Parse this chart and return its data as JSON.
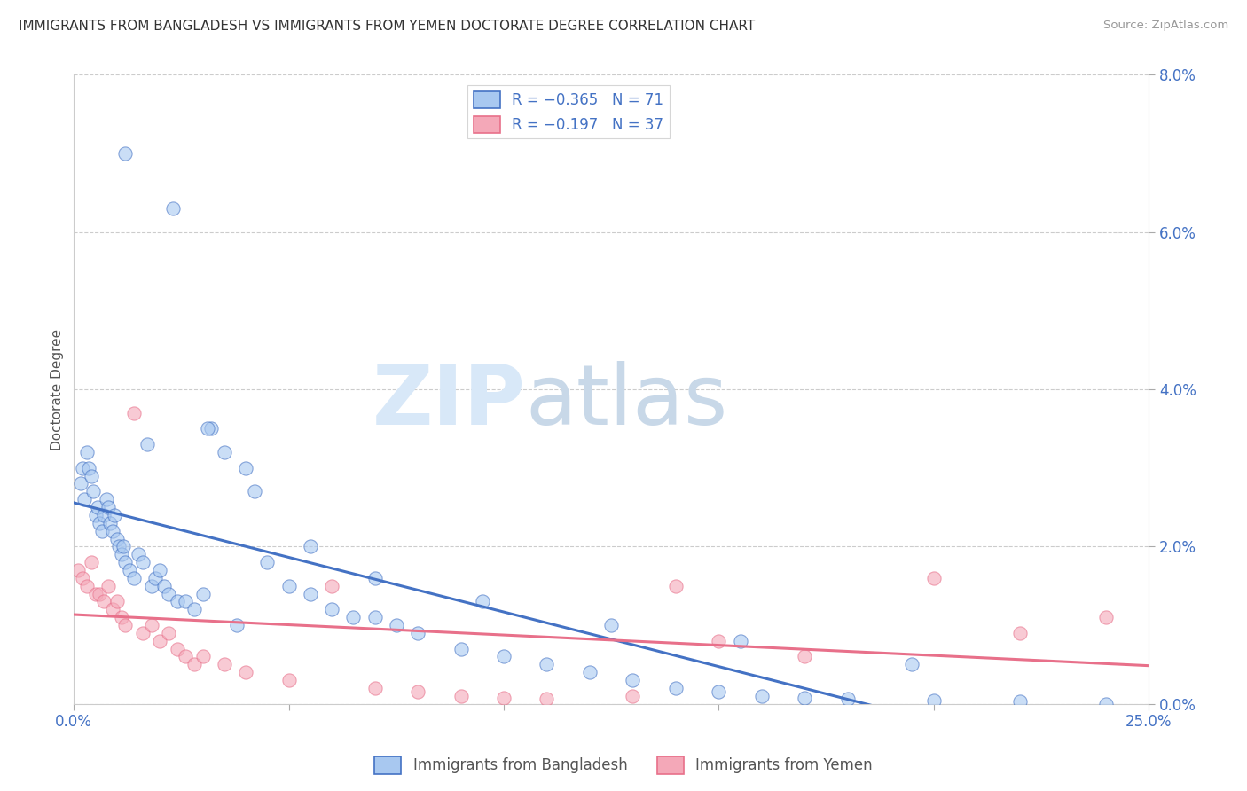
{
  "title": "IMMIGRANTS FROM BANGLADESH VS IMMIGRANTS FROM YEMEN DOCTORATE DEGREE CORRELATION CHART",
  "source": "Source: ZipAtlas.com",
  "ylabel": "Doctorate Degree",
  "legend_r1": "-0.365",
  "legend_n1": "71",
  "legend_r2": "-0.197",
  "legend_n2": "37",
  "color_bangladesh": "#A8C8F0",
  "color_yemen": "#F4A8B8",
  "color_line_bangladesh": "#4472C4",
  "color_line_yemen": "#E8708A",
  "xlim": [
    0.0,
    25.0
  ],
  "ylim": [
    0.0,
    8.0
  ],
  "bangladesh_x": [
    0.15,
    0.2,
    0.25,
    0.3,
    0.35,
    0.4,
    0.45,
    0.5,
    0.55,
    0.6,
    0.65,
    0.7,
    0.75,
    0.8,
    0.85,
    0.9,
    0.95,
    1.0,
    1.05,
    1.1,
    1.15,
    1.2,
    1.3,
    1.4,
    1.5,
    1.6,
    1.7,
    1.8,
    1.9,
    2.0,
    2.1,
    2.2,
    2.4,
    2.6,
    2.8,
    3.0,
    3.2,
    3.5,
    3.8,
    4.0,
    4.5,
    5.0,
    5.5,
    6.0,
    6.5,
    7.0,
    7.5,
    8.0,
    9.0,
    10.0,
    11.0,
    12.0,
    13.0,
    14.0,
    15.0,
    16.0,
    17.0,
    18.0,
    20.0,
    22.0,
    1.2,
    2.3,
    3.1,
    4.2,
    5.5,
    7.0,
    9.5,
    12.5,
    15.5,
    19.5,
    24.0
  ],
  "bangladesh_y": [
    2.8,
    3.0,
    2.6,
    3.2,
    3.0,
    2.9,
    2.7,
    2.4,
    2.5,
    2.3,
    2.2,
    2.4,
    2.6,
    2.5,
    2.3,
    2.2,
    2.4,
    2.1,
    2.0,
    1.9,
    2.0,
    1.8,
    1.7,
    1.6,
    1.9,
    1.8,
    3.3,
    1.5,
    1.6,
    1.7,
    1.5,
    1.4,
    1.3,
    1.3,
    1.2,
    1.4,
    3.5,
    3.2,
    1.0,
    3.0,
    1.8,
    1.5,
    1.4,
    1.2,
    1.1,
    1.1,
    1.0,
    0.9,
    0.7,
    0.6,
    0.5,
    0.4,
    0.3,
    0.2,
    0.15,
    0.1,
    0.08,
    0.06,
    0.04,
    0.03,
    7.0,
    6.3,
    3.5,
    2.7,
    2.0,
    1.6,
    1.3,
    1.0,
    0.8,
    0.5,
    0.0
  ],
  "yemen_x": [
    0.1,
    0.2,
    0.3,
    0.4,
    0.5,
    0.6,
    0.7,
    0.8,
    0.9,
    1.0,
    1.1,
    1.2,
    1.4,
    1.6,
    1.8,
    2.0,
    2.2,
    2.4,
    2.6,
    2.8,
    3.0,
    3.5,
    4.0,
    5.0,
    6.0,
    7.0,
    8.0,
    9.0,
    10.0,
    11.0,
    13.0,
    15.0,
    17.0,
    20.0,
    22.0,
    24.0,
    14.0
  ],
  "yemen_y": [
    1.7,
    1.6,
    1.5,
    1.8,
    1.4,
    1.4,
    1.3,
    1.5,
    1.2,
    1.3,
    1.1,
    1.0,
    3.7,
    0.9,
    1.0,
    0.8,
    0.9,
    0.7,
    0.6,
    0.5,
    0.6,
    0.5,
    0.4,
    0.3,
    1.5,
    0.2,
    0.15,
    0.1,
    0.08,
    0.06,
    0.1,
    0.8,
    0.6,
    1.6,
    0.9,
    1.1,
    1.5
  ]
}
